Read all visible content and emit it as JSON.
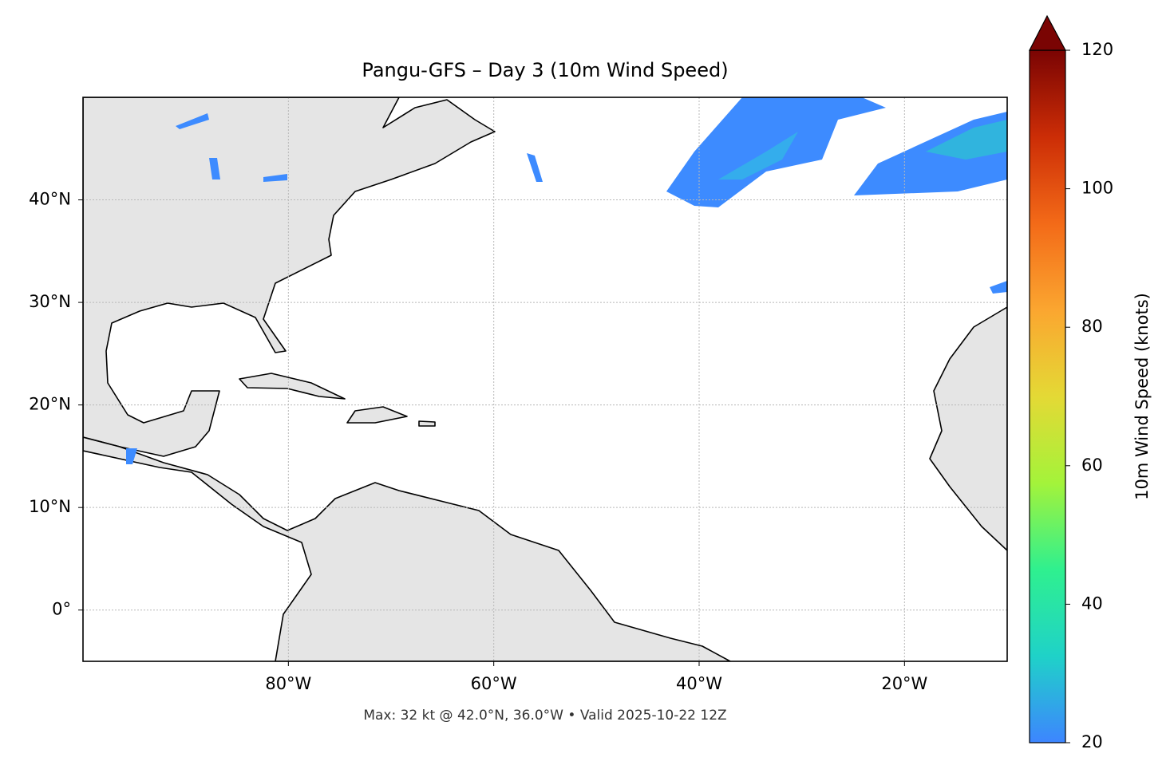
{
  "chart_data": {
    "type": "map",
    "title": "Pangu-GFS – Day 3 (10m Wind Speed)",
    "subtitle": "Max: 32 kt @ 42.0°N, 36.0°W • Valid 2025-10-22 12Z",
    "xlim": [
      -100,
      -10
    ],
    "ylim": [
      -5,
      50
    ],
    "xticks": [
      {
        "value": -80,
        "label": "80°W"
      },
      {
        "value": -60,
        "label": "60°W"
      },
      {
        "value": -40,
        "label": "40°W"
      },
      {
        "value": -20,
        "label": "20°W"
      }
    ],
    "yticks": [
      {
        "value": 0,
        "label": "0°"
      },
      {
        "value": 10,
        "label": "10°N"
      },
      {
        "value": 20,
        "label": "20°N"
      },
      {
        "value": 30,
        "label": "30°N"
      },
      {
        "value": 40,
        "label": "40°N"
      }
    ],
    "grid": true,
    "colorbar": {
      "label": "10m Wind Speed (knots)",
      "lim": [
        20,
        120
      ],
      "ticks": [
        20,
        40,
        60,
        80,
        100,
        120
      ],
      "colors": [
        "#3d85ff",
        "#1fd2c8",
        "#2ff08f",
        "#a4f33a",
        "#e4d935",
        "#fba630",
        "#f36a18",
        "#cc2d06",
        "#7a0403"
      ]
    }
  }
}
